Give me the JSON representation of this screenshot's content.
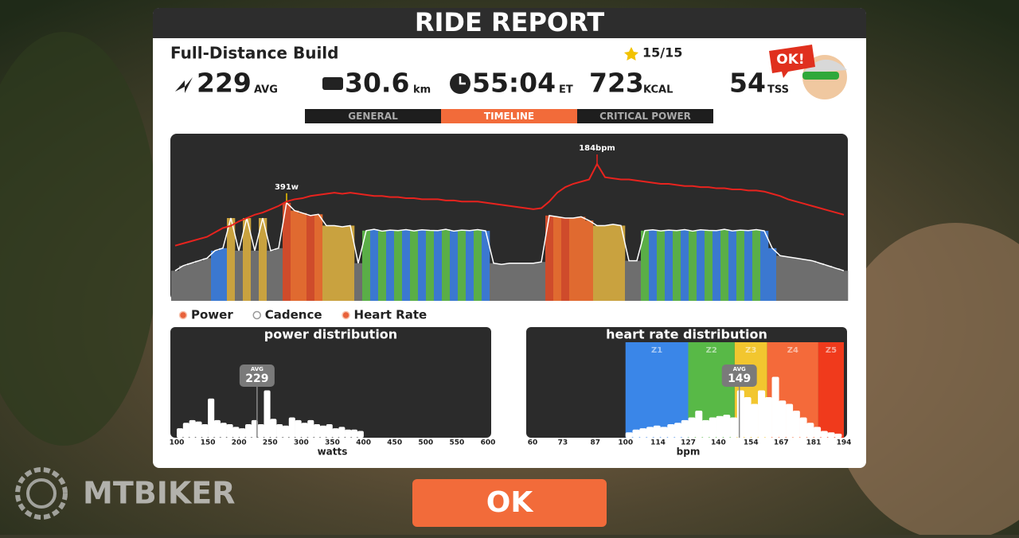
{
  "header": {
    "title": "RIDE REPORT"
  },
  "workout": {
    "name": "Full-Distance Build",
    "rating": "15/15"
  },
  "stats": [
    {
      "value": "229",
      "unit": "AVG"
    },
    {
      "value": "30.6",
      "unit": "km"
    },
    {
      "value": "55:04",
      "unit": "ET"
    },
    {
      "value": "723",
      "unit": "KCAL"
    },
    {
      "value": "54",
      "unit": "TSS"
    }
  ],
  "avatar": {
    "speech": "OK!"
  },
  "tabs": [
    {
      "label": "GENERAL",
      "active": false
    },
    {
      "label": "TIMELINE",
      "active": true
    },
    {
      "label": "CRITICAL POWER",
      "active": false
    }
  ],
  "chart_data": [
    {
      "type": "timeline",
      "ylim": [
        0,
        660
      ],
      "y2lim": [
        60,
        210
      ],
      "series": [
        {
          "name": "Power",
          "color": "#ffffff",
          "visible": true,
          "values": [
            120,
            140,
            150,
            160,
            170,
            200,
            210,
            330,
            200,
            330,
            200,
            330,
            200,
            210,
            391,
            360,
            350,
            340,
            345,
            300,
            300,
            295,
            300,
            150,
            280,
            285,
            278,
            282,
            280,
            284,
            279,
            283,
            281,
            280,
            285,
            278,
            282,
            280,
            284,
            279,
            150,
            145,
            150,
            150,
            150,
            150,
            155,
            340,
            335,
            330,
            330,
            335,
            320,
            300,
            300,
            305,
            300,
            160,
            160,
            280,
            283,
            279,
            282,
            280,
            284,
            278,
            283,
            281,
            280,
            285,
            279,
            282,
            280,
            284,
            279,
            210,
            180,
            175,
            170,
            165,
            160,
            150,
            140,
            130,
            120
          ],
          "colors": [
            "#6e6e6e",
            "#6e6e6e",
            "#6e6e6e",
            "#6e6e6e",
            "#6e6e6e",
            "#3b78d0",
            "#3b78d0",
            "#c9a23f",
            "#6e6e6e",
            "#c9a23f",
            "#6e6e6e",
            "#c9a23f",
            "#6e6e6e",
            "#6e6e6e",
            "#cf4b2b",
            "#e06a30",
            "#e06a30",
            "#cf4b2b",
            "#e06a30",
            "#c9a23f",
            "#c9a23f",
            "#c9a23f",
            "#c9a23f",
            "#6e6e6e",
            "#5aae47",
            "#3b78d0",
            "#5aae47",
            "#3b78d0",
            "#5aae47",
            "#3b78d0",
            "#5aae47",
            "#3b78d0",
            "#5aae47",
            "#3b78d0",
            "#5aae47",
            "#3b78d0",
            "#5aae47",
            "#3b78d0",
            "#5aae47",
            "#3b78d0",
            "#6e6e6e",
            "#6e6e6e",
            "#6e6e6e",
            "#6e6e6e",
            "#6e6e6e",
            "#6e6e6e",
            "#6e6e6e",
            "#cf4b2b",
            "#e06a30",
            "#cf4b2b",
            "#e06a30",
            "#e06a30",
            "#e06a30",
            "#c9a23f",
            "#c9a23f",
            "#c9a23f",
            "#c9a23f",
            "#6e6e6e",
            "#6e6e6e",
            "#5aae47",
            "#3b78d0",
            "#5aae47",
            "#3b78d0",
            "#5aae47",
            "#3b78d0",
            "#5aae47",
            "#3b78d0",
            "#5aae47",
            "#3b78d0",
            "#5aae47",
            "#3b78d0",
            "#5aae47",
            "#3b78d0",
            "#5aae47",
            "#3b78d0",
            "#3b78d0",
            "#6e6e6e",
            "#6e6e6e",
            "#6e6e6e",
            "#6e6e6e",
            "#6e6e6e",
            "#6e6e6e",
            "#6e6e6e",
            "#6e6e6e",
            "#6e6e6e"
          ],
          "value_labels": [
            null,
            null,
            null,
            null,
            null,
            null,
            null,
            null,
            null,
            null,
            null,
            null,
            null,
            null,
            "391w",
            null,
            null,
            null,
            null,
            null,
            null,
            null,
            null,
            null,
            null,
            null,
            null,
            null,
            null,
            null,
            null,
            null,
            null,
            null,
            null,
            null,
            null,
            null,
            null,
            null,
            null,
            null,
            null,
            null,
            null,
            null,
            null,
            null,
            null,
            null,
            null,
            null,
            null,
            null,
            null,
            null,
            null,
            null,
            null,
            null,
            null,
            null,
            null,
            null,
            null,
            null,
            null,
            null,
            null,
            null,
            null,
            null,
            null,
            null,
            null,
            null,
            null,
            null,
            null,
            null,
            null,
            null,
            null,
            null,
            null
          ]
        },
        {
          "name": "Cadence",
          "color": "#ffffff",
          "visible": false
        },
        {
          "name": "Heart Rate",
          "color": "#e8231e",
          "visible": true,
          "axis": "y2",
          "values": [
            110,
            112,
            114,
            116,
            118,
            122,
            126,
            128,
            132,
            135,
            138,
            140,
            143,
            146,
            150,
            152,
            153,
            155,
            156,
            157,
            158,
            157,
            158,
            157,
            156,
            155,
            155,
            154,
            154,
            153,
            153,
            152,
            152,
            152,
            151,
            151,
            150,
            150,
            150,
            149,
            148,
            147,
            146,
            145,
            144,
            143,
            144,
            150,
            158,
            163,
            166,
            168,
            170,
            184,
            172,
            171,
            170,
            170,
            169,
            168,
            167,
            166,
            166,
            165,
            164,
            164,
            163,
            163,
            162,
            162,
            161,
            161,
            160,
            160,
            159,
            157,
            155,
            152,
            150,
            148,
            146,
            144,
            142,
            140,
            138
          ],
          "value_labels": [
            null,
            null,
            null,
            null,
            null,
            null,
            null,
            null,
            null,
            null,
            null,
            null,
            null,
            null,
            null,
            null,
            null,
            null,
            null,
            null,
            null,
            null,
            null,
            null,
            null,
            null,
            null,
            null,
            null,
            null,
            null,
            null,
            null,
            null,
            null,
            null,
            null,
            null,
            null,
            null,
            null,
            null,
            null,
            null,
            null,
            null,
            null,
            null,
            null,
            null,
            null,
            null,
            null,
            "184bpm",
            null,
            null,
            null,
            null,
            null,
            null,
            null,
            null,
            null,
            null,
            null,
            null,
            null,
            null,
            null,
            null,
            null,
            null,
            null,
            null,
            null,
            null,
            null,
            null,
            null,
            null,
            null,
            null,
            null,
            null,
            null
          ]
        }
      ]
    },
    {
      "type": "histogram",
      "title": "power distribution",
      "xlabel": "watts",
      "color": "#ffffff",
      "bins": [
        100,
        110,
        120,
        130,
        140,
        150,
        160,
        170,
        180,
        190,
        200,
        210,
        220,
        230,
        240,
        250,
        260,
        270,
        280,
        290,
        300,
        310,
        320,
        330,
        340,
        350,
        360,
        370,
        380,
        390,
        400
      ],
      "values": [
        14,
        22,
        26,
        24,
        20,
        58,
        26,
        22,
        20,
        16,
        14,
        20,
        26,
        20,
        70,
        28,
        20,
        18,
        30,
        26,
        22,
        26,
        20,
        18,
        20,
        14,
        16,
        12,
        12,
        10
      ],
      "xlim": [
        100,
        600
      ],
      "xticks": [
        100,
        150,
        200,
        250,
        300,
        350,
        400,
        450,
        500,
        550,
        600
      ],
      "ylim": [
        0,
        140
      ],
      "avg": {
        "label": "AVG",
        "value": 229
      }
    },
    {
      "type": "histogram",
      "title": "heart rate distribution",
      "xlabel": "bpm",
      "color": "#ffffff",
      "bins": [
        100,
        103,
        106,
        109,
        112,
        115,
        118,
        121,
        124,
        127,
        130,
        133,
        136,
        139,
        142,
        145,
        148,
        151,
        154,
        157,
        160,
        163,
        166,
        169,
        172,
        175,
        178,
        181,
        184,
        187,
        190,
        193
      ],
      "values": [
        8,
        12,
        14,
        16,
        18,
        16,
        20,
        22,
        26,
        30,
        40,
        26,
        30,
        32,
        34,
        30,
        70,
        60,
        50,
        70,
        60,
        90,
        55,
        50,
        40,
        30,
        22,
        16,
        10,
        8,
        6
      ],
      "xlim": [
        60,
        194
      ],
      "xticks": [
        60,
        73,
        87,
        100,
        114,
        127,
        140,
        154,
        167,
        181,
        194
      ],
      "ylim": [
        0,
        140
      ],
      "zones": [
        {
          "label": "Z1",
          "from": 100,
          "to": 127,
          "color": "#3a86e8"
        },
        {
          "label": "Z2",
          "from": 127,
          "to": 147,
          "color": "#58b947"
        },
        {
          "label": "Z3",
          "from": 147,
          "to": 161,
          "color": "#f2c62f"
        },
        {
          "label": "Z4",
          "from": 161,
          "to": 183,
          "color": "#f46a3a"
        },
        {
          "label": "Z5",
          "from": 183,
          "to": 194,
          "color": "#f03a1c"
        }
      ],
      "avg": {
        "label": "AVG",
        "value": 149
      }
    }
  ],
  "button": {
    "label": "OK"
  },
  "watermark": {
    "text": "MTBIKER"
  }
}
